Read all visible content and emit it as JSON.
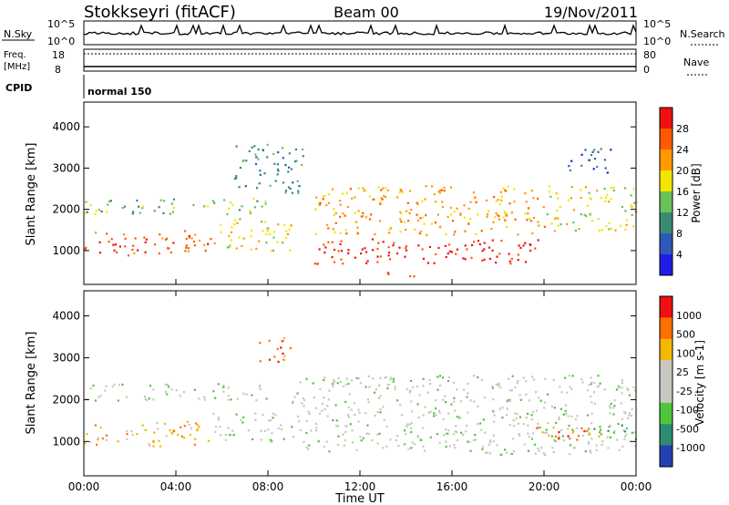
{
  "header": {
    "station": "Stokkseyri (fitACF)",
    "beam": "Beam 00",
    "date": "19/Nov/2011"
  },
  "status_panels": {
    "nsky_label": "N.Sky",
    "nsky_ticks": [
      "10^5",
      "10^0"
    ],
    "nsearch_label": "N.Search",
    "nsearch_ticks": [
      "10^5",
      "10^0"
    ],
    "freq_label_1": "Freq.",
    "freq_label_2": "[MHz]",
    "freq_ticks": [
      "18",
      "8"
    ],
    "nave_label": "Nave",
    "nave_ticks": [
      "80",
      "0"
    ],
    "cpid_label": "CPID",
    "cpid_value": "normal 150"
  },
  "chart_data": [
    {
      "type": "heatmap",
      "name": "power",
      "ylabel": "Slant Range [km]",
      "yticks": [
        "4000",
        "3000",
        "2000",
        "1000"
      ],
      "ylim": [
        180,
        4600
      ],
      "colorbar_label": "Power [dB]",
      "colorbar_ticks": [
        "28",
        "24",
        "20",
        "16",
        "12",
        "8",
        "4"
      ],
      "colors": [
        "#1e1ee6",
        "#2f58b8",
        "#3a8a74",
        "#6cc05a",
        "#f2e600",
        "#ff9a00",
        "#ff5a00",
        "#f01010"
      ],
      "scatter_bands": [
        {
          "t0": 0.0,
          "t1": 5.5,
          "r0": 900,
          "r1": 1500,
          "level": 6
        },
        {
          "t0": 5.5,
          "t1": 9.0,
          "r0": 1000,
          "r1": 1800,
          "level": 4
        },
        {
          "t0": 0.0,
          "t1": 8.0,
          "r0": 1900,
          "r1": 2300,
          "level": 3
        },
        {
          "t0": 6.5,
          "t1": 9.5,
          "r0": 2400,
          "r1": 3600,
          "level": 2
        },
        {
          "t0": 10.0,
          "t1": 20.0,
          "r0": 700,
          "r1": 1300,
          "level": 7
        },
        {
          "t0": 10.0,
          "t1": 20.0,
          "r0": 1400,
          "r1": 2600,
          "level": 5
        },
        {
          "t0": 13.0,
          "t1": 14.5,
          "r0": 350,
          "r1": 500,
          "level": 7
        },
        {
          "t0": 20.0,
          "t1": 24.0,
          "r0": 1500,
          "r1": 2600,
          "level": 4
        },
        {
          "t0": 21.0,
          "t1": 23.0,
          "r0": 2900,
          "r1": 3500,
          "level": 1
        }
      ]
    },
    {
      "type": "heatmap",
      "name": "velocity",
      "ylabel": "Slant Range [km]",
      "yticks": [
        "4000",
        "3000",
        "2000",
        "1000"
      ],
      "ylim": [
        180,
        4600
      ],
      "xlabel": "Time UT",
      "xticks": [
        "00:00",
        "04:00",
        "08:00",
        "12:00",
        "16:00",
        "20:00",
        "00:00"
      ],
      "xlim": [
        0,
        24
      ],
      "colorbar_label": "Velocity [m s-1]",
      "colorbar_ticks": [
        "1000",
        "500",
        "100",
        "25",
        "-25",
        "-100",
        "-500",
        "-1000"
      ],
      "colors": [
        "#2240b0",
        "#2e8c70",
        "#4fc63a",
        "#c8c8c0",
        "#c8c8c0",
        "#f5b800",
        "#ff7000",
        "#f01010"
      ],
      "scatter_bands": [
        {
          "t0": 0.0,
          "t1": 5.5,
          "r0": 900,
          "r1": 1500,
          "level": 5
        },
        {
          "t0": 5.5,
          "t1": 9.0,
          "r0": 1000,
          "r1": 1700,
          "level": 3
        },
        {
          "t0": 0.0,
          "t1": 8.0,
          "r0": 2000,
          "r1": 2400,
          "level": 3
        },
        {
          "t0": 7.5,
          "t1": 9.0,
          "r0": 2900,
          "r1": 3500,
          "level": 6
        },
        {
          "t0": 9.0,
          "t1": 24.0,
          "r0": 700,
          "r1": 2600,
          "level": 3
        },
        {
          "t0": 19.5,
          "t1": 22.5,
          "r0": 1000,
          "r1": 1400,
          "level": 6
        },
        {
          "t0": 22.0,
          "t1": 24.0,
          "r0": 1200,
          "r1": 1500,
          "level": 2
        }
      ]
    }
  ]
}
